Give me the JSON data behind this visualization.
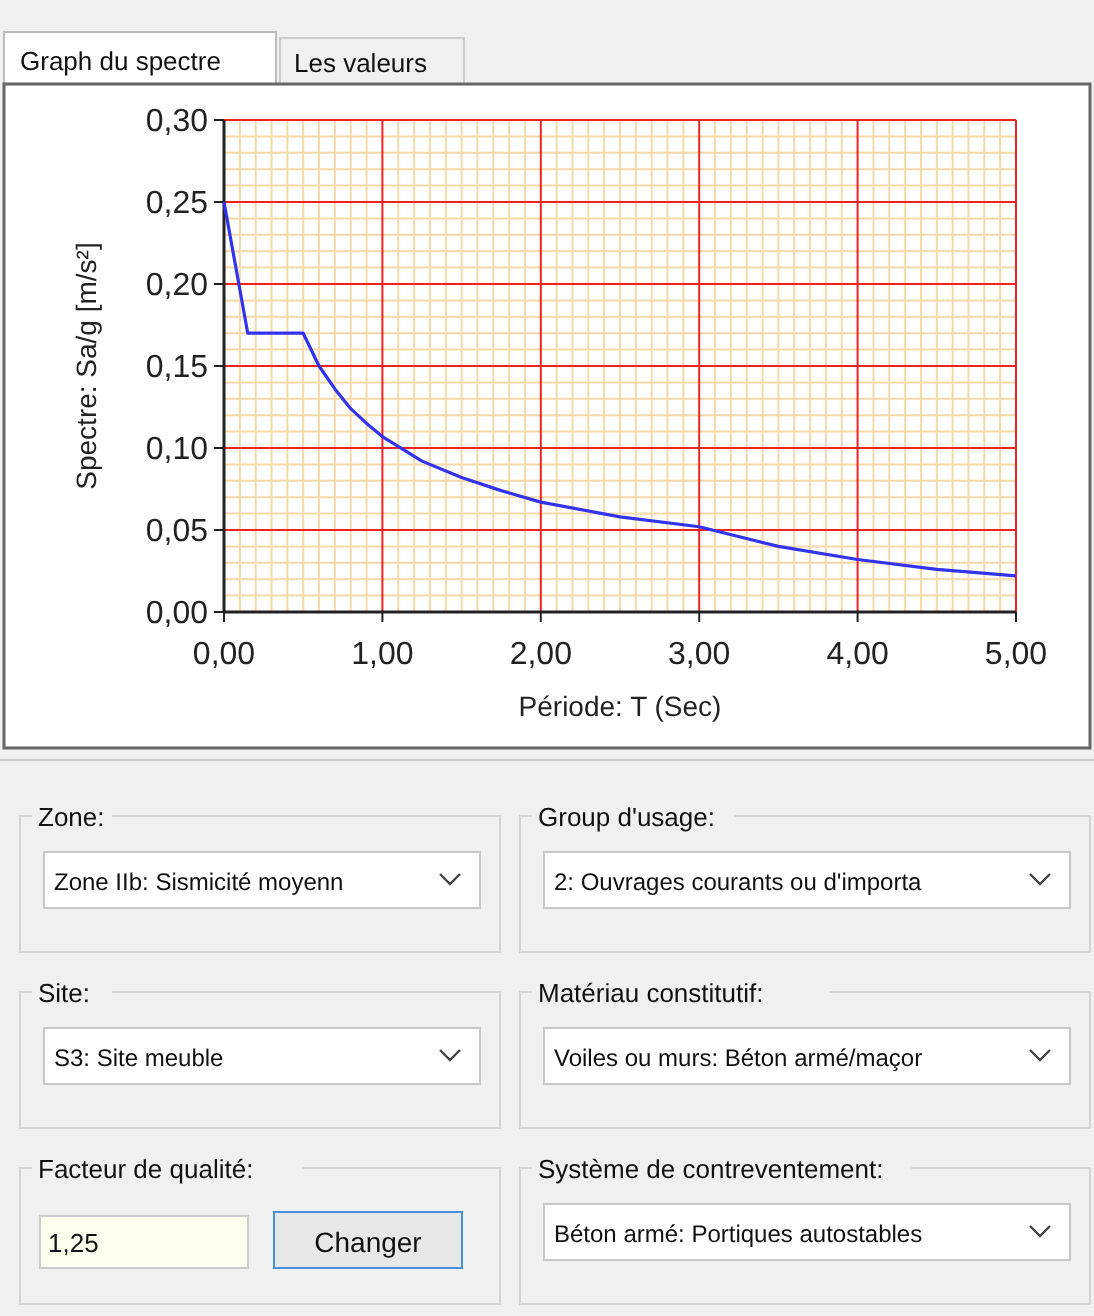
{
  "chart_data": {
    "type": "line",
    "xlabel": "Période: T (Sec)",
    "ylabel": "Spectre: Sa/g [m/s²]",
    "x": [
      0,
      0.15,
      0.5,
      0.6,
      0.7,
      0.8,
      0.9,
      1.0,
      1.25,
      1.5,
      1.75,
      2.0,
      2.5,
      3.0,
      3.5,
      4.0,
      4.5,
      5.0
    ],
    "series": [
      {
        "color": "#3333ee",
        "values": [
          0.25,
          0.17,
          0.17,
          0.15,
          0.136,
          0.124,
          0.115,
          0.107,
          0.092,
          0.082,
          0.074,
          0.067,
          0.058,
          0.052,
          0.04,
          0.032,
          0.026,
          0.022
        ]
      }
    ],
    "xlim": [
      0,
      5
    ],
    "ylim": [
      0,
      0.3
    ],
    "xticks": [
      {
        "value": 0,
        "label": "0,00"
      },
      {
        "value": 0.1,
        "label": null
      },
      {
        "value": 0.2,
        "label": null
      },
      {
        "value": 0.3,
        "label": null
      },
      {
        "value": 0.4,
        "label": null
      },
      {
        "value": 0.5,
        "label": null
      },
      {
        "value": 0.6,
        "label": null
      },
      {
        "value": 0.7,
        "label": null
      },
      {
        "value": 0.8,
        "label": null
      },
      {
        "value": 0.9,
        "label": null
      },
      {
        "value": 1,
        "label": "1,00"
      },
      {
        "value": 1.1,
        "label": null
      },
      {
        "value": 1.2,
        "label": null
      },
      {
        "value": 1.3,
        "label": null
      },
      {
        "value": 1.4,
        "label": null
      },
      {
        "value": 1.5,
        "label": null
      },
      {
        "value": 1.6,
        "label": null
      },
      {
        "value": 1.7,
        "label": null
      },
      {
        "value": 1.8,
        "label": null
      },
      {
        "value": 1.9,
        "label": null
      },
      {
        "value": 2,
        "label": "2,00"
      },
      {
        "value": 2.1,
        "label": null
      },
      {
        "value": 2.2,
        "label": null
      },
      {
        "value": 2.3,
        "label": null
      },
      {
        "value": 2.4,
        "label": null
      },
      {
        "value": 2.5,
        "label": null
      },
      {
        "value": 2.6,
        "label": null
      },
      {
        "value": 2.7,
        "label": null
      },
      {
        "value": 2.8,
        "label": null
      },
      {
        "value": 2.9,
        "label": null
      },
      {
        "value": 3,
        "label": "3,00"
      },
      {
        "value": 3.1,
        "label": null
      },
      {
        "value": 3.2,
        "label": null
      },
      {
        "value": 3.3,
        "label": null
      },
      {
        "value": 3.4,
        "label": null
      },
      {
        "value": 3.5,
        "label": null
      },
      {
        "value": 3.6,
        "label": null
      },
      {
        "value": 3.7,
        "label": null
      },
      {
        "value": 3.8,
        "label": null
      },
      {
        "value": 3.9,
        "label": null
      },
      {
        "value": 4,
        "label": "4,00"
      },
      {
        "value": 4.1,
        "label": null
      },
      {
        "value": 4.2,
        "label": null
      },
      {
        "value": 4.3,
        "label": null
      },
      {
        "value": 4.4,
        "label": null
      },
      {
        "value": 4.5,
        "label": null
      },
      {
        "value": 4.6,
        "label": null
      },
      {
        "value": 4.7,
        "label": null
      },
      {
        "value": 4.8,
        "label": null
      },
      {
        "value": 4.9,
        "label": null
      },
      {
        "value": 5,
        "label": "5,00"
      }
    ],
    "yticks": [
      {
        "value": 0,
        "label": "0,00"
      },
      {
        "value": 0.01,
        "label": null
      },
      {
        "value": 0.02,
        "label": null
      },
      {
        "value": 0.03,
        "label": null
      },
      {
        "value": 0.04,
        "label": null
      },
      {
        "value": 0.05,
        "label": "0,05"
      },
      {
        "value": 0.06,
        "label": null
      },
      {
        "value": 0.07,
        "label": null
      },
      {
        "value": 0.08,
        "label": null
      },
      {
        "value": 0.09,
        "label": null
      },
      {
        "value": 0.1,
        "label": "0,10"
      },
      {
        "value": 0.11,
        "label": null
      },
      {
        "value": 0.12,
        "label": null
      },
      {
        "value": 0.13,
        "label": null
      },
      {
        "value": 0.14,
        "label": null
      },
      {
        "value": 0.15,
        "label": "0,15"
      },
      {
        "value": 0.16,
        "label": null
      },
      {
        "value": 0.17,
        "label": null
      },
      {
        "value": 0.18,
        "label": null
      },
      {
        "value": 0.19,
        "label": null
      },
      {
        "value": 0.2,
        "label": "0,20"
      },
      {
        "value": 0.21,
        "label": null
      },
      {
        "value": 0.22,
        "label": null
      },
      {
        "value": 0.23,
        "label": null
      },
      {
        "value": 0.24,
        "label": null
      },
      {
        "value": 0.25,
        "label": "0,25"
      },
      {
        "value": 0.26,
        "label": null
      },
      {
        "value": 0.27,
        "label": null
      },
      {
        "value": 0.28,
        "label": null
      },
      {
        "value": 0.29,
        "label": null
      },
      {
        "value": 0.3,
        "label": "0,30"
      }
    ],
    "grid": true,
    "marker": "none",
    "line_style": "solid",
    "annotations": [
      "Graph du spectre",
      "Les valeurs",
      "Zone:",
      "Zone IIb: Sismicité moyenn",
      "Group d'usage:",
      "2: Ouvrages courants ou d'importa",
      "Site:",
      "S3: Site meuble",
      "Matériau constitutif:",
      "Voiles ou murs: Béton armé/maçor",
      "Facteur de qualité:",
      "1,25",
      "Système de contreventement:",
      "Béton armé: Portiques autostables",
      "Changer"
    ]
  }
}
